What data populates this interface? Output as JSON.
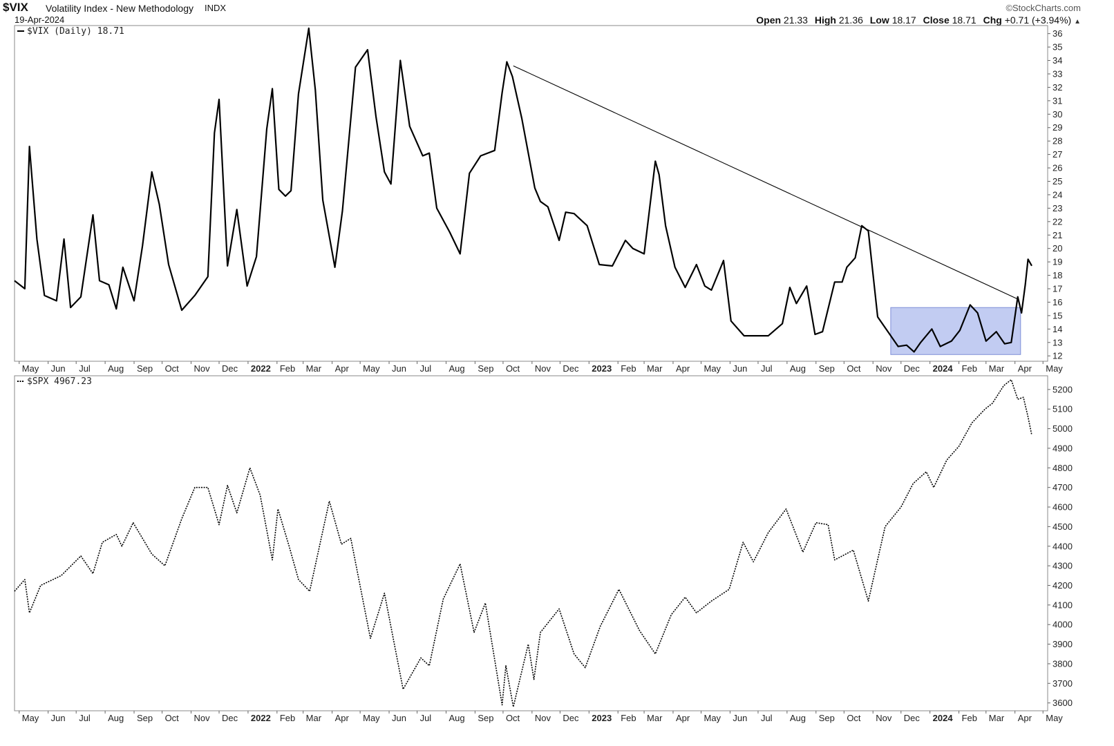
{
  "header": {
    "symbol": "$VIX",
    "description": "Volatility Index - New Methodology",
    "exchange": "INDX",
    "date": "19-Apr-2024",
    "brand": "©StockCharts.com",
    "ohlc": {
      "open_label": "Open",
      "open": "21.33",
      "high_label": "High",
      "high": "21.36",
      "low_label": "Low",
      "low": "18.17",
      "close_label": "Close",
      "close": "18.71",
      "chg_label": "Chg",
      "chg": "+0.71 (+3.94%)"
    }
  },
  "chart_data": [
    {
      "type": "line",
      "legend": "$VIX (Daily) 18.71",
      "x_month_labels": [
        "May",
        "Jun",
        "Jul",
        "Aug",
        "Sep",
        "Oct",
        "Nov",
        "Dec",
        "2022",
        "Feb",
        "Mar",
        "Apr",
        "May",
        "Jun",
        "Jul",
        "Aug",
        "Sep",
        "Oct",
        "Nov",
        "Dec",
        "2023",
        "Feb",
        "Mar",
        "Apr",
        "May",
        "Jun",
        "Jul",
        "Aug",
        "Sep",
        "Oct",
        "Nov",
        "Dec",
        "2024",
        "Feb",
        "Mar",
        "Apr",
        "May"
      ],
      "x_range": [
        "2021-04-26",
        "2024-05-06"
      ],
      "ylim": [
        11.6,
        36.6
      ],
      "y_ticks": [
        12,
        13,
        14,
        15,
        16,
        17,
        18,
        19,
        20,
        21,
        22,
        23,
        24,
        25,
        26,
        27,
        28,
        29,
        30,
        31,
        32,
        33,
        34,
        35,
        36
      ],
      "series": [
        {
          "name": "$VIX",
          "points": [
            [
              "2021-04-26",
              17.6
            ],
            [
              "2021-05-07",
              17.0
            ],
            [
              "2021-05-12",
              27.6
            ],
            [
              "2021-05-20",
              20.7
            ],
            [
              "2021-05-28",
              16.5
            ],
            [
              "2021-06-10",
              16.1
            ],
            [
              "2021-06-18",
              20.7
            ],
            [
              "2021-06-25",
              15.6
            ],
            [
              "2021-07-06",
              16.4
            ],
            [
              "2021-07-19",
              22.5
            ],
            [
              "2021-07-26",
              17.6
            ],
            [
              "2021-08-05",
              17.3
            ],
            [
              "2021-08-13",
              15.5
            ],
            [
              "2021-08-20",
              18.6
            ],
            [
              "2021-09-01",
              16.1
            ],
            [
              "2021-09-10",
              20.2
            ],
            [
              "2021-09-20",
              25.7
            ],
            [
              "2021-09-28",
              23.3
            ],
            [
              "2021-10-08",
              18.8
            ],
            [
              "2021-10-22",
              15.4
            ],
            [
              "2021-11-05",
              16.5
            ],
            [
              "2021-11-19",
              17.9
            ],
            [
              "2021-11-26",
              28.6
            ],
            [
              "2021-12-01",
              31.1
            ],
            [
              "2021-12-10",
              18.7
            ],
            [
              "2021-12-20",
              22.9
            ],
            [
              "2021-12-31",
              17.2
            ],
            [
              "2022-01-10",
              19.4
            ],
            [
              "2022-01-21",
              28.9
            ],
            [
              "2022-01-27",
              31.9
            ],
            [
              "2022-02-03",
              24.4
            ],
            [
              "2022-02-10",
              23.9
            ],
            [
              "2022-02-16",
              24.3
            ],
            [
              "2022-02-24",
              31.5
            ],
            [
              "2022-03-07",
              36.4
            ],
            [
              "2022-03-14",
              31.8
            ],
            [
              "2022-03-22",
              23.6
            ],
            [
              "2022-04-04",
              18.6
            ],
            [
              "2022-04-12",
              22.8
            ],
            [
              "2022-04-26",
              33.5
            ],
            [
              "2022-05-09",
              34.8
            ],
            [
              "2022-05-18",
              29.8
            ],
            [
              "2022-05-27",
              25.7
            ],
            [
              "2022-06-03",
              24.8
            ],
            [
              "2022-06-13",
              34.0
            ],
            [
              "2022-06-23",
              29.1
            ],
            [
              "2022-07-07",
              26.9
            ],
            [
              "2022-07-14",
              27.1
            ],
            [
              "2022-07-22",
              23.0
            ],
            [
              "2022-08-05",
              21.2
            ],
            [
              "2022-08-16",
              19.6
            ],
            [
              "2022-08-26",
              25.6
            ],
            [
              "2022-09-07",
              26.9
            ],
            [
              "2022-09-22",
              27.3
            ],
            [
              "2022-09-30",
              31.6
            ],
            [
              "2022-10-05",
              33.9
            ],
            [
              "2022-10-11",
              32.8
            ],
            [
              "2022-10-21",
              29.7
            ],
            [
              "2022-11-04",
              24.5
            ],
            [
              "2022-11-10",
              23.5
            ],
            [
              "2022-11-18",
              23.1
            ],
            [
              "2022-11-30",
              20.6
            ],
            [
              "2022-12-07",
              22.7
            ],
            [
              "2022-12-16",
              22.6
            ],
            [
              "2022-12-30",
              21.7
            ],
            [
              "2023-01-12",
              18.8
            ],
            [
              "2023-01-26",
              18.7
            ],
            [
              "2023-02-09",
              20.6
            ],
            [
              "2023-02-17",
              20.0
            ],
            [
              "2023-03-01",
              19.6
            ],
            [
              "2023-03-13",
              26.5
            ],
            [
              "2023-03-17",
              25.5
            ],
            [
              "2023-03-24",
              21.7
            ],
            [
              "2023-04-03",
              18.6
            ],
            [
              "2023-04-14",
              17.1
            ],
            [
              "2023-04-26",
              18.8
            ],
            [
              "2023-05-05",
              17.2
            ],
            [
              "2023-05-12",
              16.9
            ],
            [
              "2023-05-25",
              19.1
            ],
            [
              "2023-06-02",
              14.6
            ],
            [
              "2023-06-16",
              13.5
            ],
            [
              "2023-06-29",
              13.5
            ],
            [
              "2023-07-12",
              13.5
            ],
            [
              "2023-07-27",
              14.4
            ],
            [
              "2023-08-04",
              17.1
            ],
            [
              "2023-08-11",
              15.9
            ],
            [
              "2023-08-22",
              17.2
            ],
            [
              "2023-08-31",
              13.6
            ],
            [
              "2023-09-08",
              13.8
            ],
            [
              "2023-09-21",
              17.5
            ],
            [
              "2023-09-29",
              17.5
            ],
            [
              "2023-10-04",
              18.6
            ],
            [
              "2023-10-13",
              19.3
            ],
            [
              "2023-10-20",
              21.7
            ],
            [
              "2023-10-27",
              21.3
            ],
            [
              "2023-11-06",
              14.9
            ],
            [
              "2023-11-17",
              13.8
            ],
            [
              "2023-11-28",
              12.7
            ],
            [
              "2023-12-07",
              12.8
            ],
            [
              "2023-12-15",
              12.3
            ],
            [
              "2023-12-22",
              13.0
            ],
            [
              "2024-01-03",
              14.0
            ],
            [
              "2024-01-12",
              12.7
            ],
            [
              "2024-01-24",
              13.1
            ],
            [
              "2024-02-02",
              13.9
            ],
            [
              "2024-02-13",
              15.8
            ],
            [
              "2024-02-21",
              15.2
            ],
            [
              "2024-03-01",
              13.1
            ],
            [
              "2024-03-12",
              13.8
            ],
            [
              "2024-03-21",
              12.9
            ],
            [
              "2024-03-28",
              13.0
            ],
            [
              "2024-04-04",
              16.4
            ],
            [
              "2024-04-08",
              15.2
            ],
            [
              "2024-04-12",
              17.3
            ],
            [
              "2024-04-15",
              19.2
            ],
            [
              "2024-04-19",
              18.71
            ]
          ]
        }
      ],
      "trendline": [
        [
          "2022-10-12",
          33.6
        ],
        [
          "2024-04-05",
          16.2
        ]
      ],
      "highlight_box": {
        "x0": "2023-11-20",
        "x1": "2024-04-07",
        "y0": 12.1,
        "y1": 15.6,
        "color": "#b7c3f0"
      }
    },
    {
      "type": "line",
      "legend": "$SPX 4967.23",
      "x_month_labels": [
        "May",
        "Jun",
        "Jul",
        "Aug",
        "Sep",
        "Oct",
        "Nov",
        "Dec",
        "2022",
        "Feb",
        "Mar",
        "Apr",
        "May",
        "Jun",
        "Jul",
        "Aug",
        "Sep",
        "Oct",
        "Nov",
        "Dec",
        "2023",
        "Feb",
        "Mar",
        "Apr",
        "May",
        "Jun",
        "Jul",
        "Aug",
        "Sep",
        "Oct",
        "Nov",
        "Dec",
        "2024",
        "Feb",
        "Mar",
        "Apr",
        "May"
      ],
      "x_range": [
        "2021-04-26",
        "2024-05-06"
      ],
      "ylim": [
        3560,
        5270
      ],
      "y_ticks": [
        3600,
        3700,
        3800,
        3900,
        4000,
        4100,
        4200,
        4300,
        4400,
        4500,
        4600,
        4700,
        4800,
        4900,
        5000,
        5100,
        5200
      ],
      "series": [
        {
          "name": "$SPX",
          "line_style": "dotted",
          "points": [
            [
              "2021-04-26",
              4170
            ],
            [
              "2021-05-07",
              4230
            ],
            [
              "2021-05-12",
              4060
            ],
            [
              "2021-05-24",
              4200
            ],
            [
              "2021-06-15",
              4250
            ],
            [
              "2021-07-06",
              4350
            ],
            [
              "2021-07-19",
              4260
            ],
            [
              "2021-07-29",
              4420
            ],
            [
              "2021-08-13",
              4460
            ],
            [
              "2021-08-19",
              4400
            ],
            [
              "2021-08-31",
              4520
            ],
            [
              "2021-09-20",
              4360
            ],
            [
              "2021-10-04",
              4300
            ],
            [
              "2021-10-22",
              4540
            ],
            [
              "2021-11-05",
              4700
            ],
            [
              "2021-11-19",
              4700
            ],
            [
              "2021-12-01",
              4510
            ],
            [
              "2021-12-10",
              4710
            ],
            [
              "2021-12-20",
              4570
            ],
            [
              "2022-01-03",
              4800
            ],
            [
              "2022-01-14",
              4660
            ],
            [
              "2022-01-27",
              4330
            ],
            [
              "2022-02-02",
              4590
            ],
            [
              "2022-02-14",
              4400
            ],
            [
              "2022-02-24",
              4230
            ],
            [
              "2022-03-08",
              4170
            ],
            [
              "2022-03-29",
              4630
            ],
            [
              "2022-04-11",
              4410
            ],
            [
              "2022-04-21",
              4440
            ],
            [
              "2022-05-12",
              3930
            ],
            [
              "2022-05-27",
              4160
            ],
            [
              "2022-06-16",
              3670
            ],
            [
              "2022-07-05",
              3830
            ],
            [
              "2022-07-14",
              3790
            ],
            [
              "2022-07-29",
              4130
            ],
            [
              "2022-08-16",
              4310
            ],
            [
              "2022-08-31",
              3960
            ],
            [
              "2022-09-12",
              4110
            ],
            [
              "2022-09-30",
              3590
            ],
            [
              "2022-10-04",
              3790
            ],
            [
              "2022-10-12",
              3580
            ],
            [
              "2022-10-28",
              3900
            ],
            [
              "2022-11-03",
              3720
            ],
            [
              "2022-11-10",
              3960
            ],
            [
              "2022-11-30",
              4080
            ],
            [
              "2022-12-16",
              3850
            ],
            [
              "2022-12-28",
              3780
            ],
            [
              "2023-01-13",
              3990
            ],
            [
              "2023-02-02",
              4180
            ],
            [
              "2023-02-24",
              3970
            ],
            [
              "2023-03-13",
              3850
            ],
            [
              "2023-03-30",
              4050
            ],
            [
              "2023-04-14",
              4140
            ],
            [
              "2023-04-26",
              4060
            ],
            [
              "2023-05-12",
              4120
            ],
            [
              "2023-05-31",
              4180
            ],
            [
              "2023-06-15",
              4420
            ],
            [
              "2023-06-26",
              4320
            ],
            [
              "2023-07-12",
              4470
            ],
            [
              "2023-07-31",
              4590
            ],
            [
              "2023-08-18",
              4370
            ],
            [
              "2023-09-01",
              4520
            ],
            [
              "2023-09-14",
              4510
            ],
            [
              "2023-09-21",
              4330
            ],
            [
              "2023-10-11",
              4380
            ],
            [
              "2023-10-27",
              4120
            ],
            [
              "2023-11-14",
              4500
            ],
            [
              "2023-12-01",
              4600
            ],
            [
              "2023-12-14",
              4720
            ],
            [
              "2023-12-28",
              4780
            ],
            [
              "2024-01-05",
              4700
            ],
            [
              "2024-01-19",
              4840
            ],
            [
              "2024-02-01",
              4910
            ],
            [
              "2024-02-15",
              5030
            ],
            [
              "2024-02-29",
              5100
            ],
            [
              "2024-03-08",
              5130
            ],
            [
              "2024-03-20",
              5220
            ],
            [
              "2024-03-28",
              5250
            ],
            [
              "2024-04-04",
              5150
            ],
            [
              "2024-04-10",
              5160
            ],
            [
              "2024-04-15",
              5060
            ],
            [
              "2024-04-19",
              4967.23
            ]
          ]
        }
      ]
    }
  ]
}
